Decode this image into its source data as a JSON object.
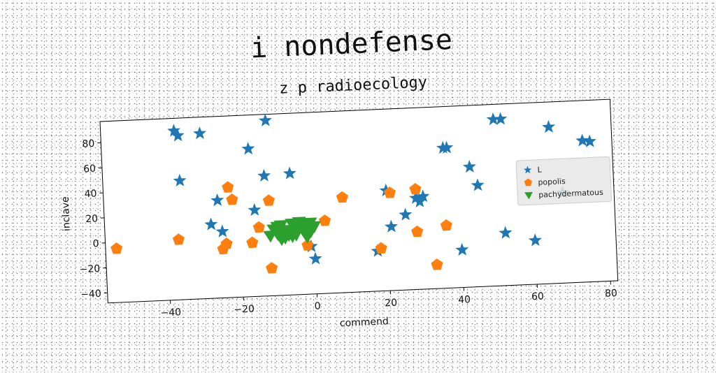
{
  "chart_data": {
    "type": "scatter",
    "title": "i nondefense",
    "subtitle": "z p radioecology",
    "xlabel": "commend",
    "ylabel": "inclave",
    "xlim": [
      -57,
      82
    ],
    "ylim": [
      -48,
      97
    ],
    "xticks": [
      -40,
      -20,
      0,
      20,
      40,
      60,
      80
    ],
    "yticks": [
      -40,
      -20,
      0,
      20,
      40,
      60,
      80
    ],
    "legend_position": "right",
    "series": [
      {
        "name": "L",
        "marker": "star",
        "color": "#1f77b4",
        "points": [
          [
            -37,
            87
          ],
          [
            -36,
            83
          ],
          [
            -30,
            84
          ],
          [
            -12,
            92
          ],
          [
            -17,
            70
          ],
          [
            -36,
            47
          ],
          [
            -13,
            48
          ],
          [
            -6,
            49
          ],
          [
            -16,
            21
          ],
          [
            -28,
            11
          ],
          [
            -25,
            5
          ],
          [
            -26,
            30
          ],
          [
            -1,
            -10
          ],
          [
            0,
            -20
          ],
          [
            20,
            32
          ],
          [
            21,
            3
          ],
          [
            25,
            12
          ],
          [
            28,
            25
          ],
          [
            29,
            22
          ],
          [
            30,
            26
          ],
          [
            36,
            64
          ],
          [
            37,
            64
          ],
          [
            43,
            48
          ],
          [
            45,
            33
          ],
          [
            50,
            85
          ],
          [
            52,
            85
          ],
          [
            65,
            77
          ],
          [
            68,
            24
          ],
          [
            74,
            65
          ],
          [
            76,
            64
          ],
          [
            52,
            -6
          ],
          [
            60,
            -13
          ],
          [
            40,
            -18
          ],
          [
            17,
            -16
          ]
        ]
      },
      {
        "name": "popolis",
        "marker": "pentagon",
        "color": "#ff7f0e",
        "points": [
          [
            -54,
            -5
          ],
          [
            -37,
            0
          ],
          [
            -23,
            40
          ],
          [
            -22,
            30
          ],
          [
            -12,
            28
          ],
          [
            8,
            28
          ],
          [
            21,
            30
          ],
          [
            28,
            32
          ],
          [
            -24,
            -5
          ],
          [
            -25,
            -9
          ],
          [
            -17,
            -5
          ],
          [
            -15,
            7
          ],
          [
            -12,
            -26
          ],
          [
            -2,
            -9
          ],
          [
            3,
            10
          ],
          [
            18,
            -14
          ],
          [
            28,
            -2
          ],
          [
            36,
            2
          ],
          [
            33,
            -29
          ]
        ]
      },
      {
        "name": "pachydermatous",
        "marker": "triangle",
        "color": "#2ca02c",
        "points": [
          [
            -11,
            5
          ],
          [
            -10,
            1
          ],
          [
            -9,
            8
          ],
          [
            -8,
            -2
          ],
          [
            -7,
            4
          ],
          [
            -6,
            9
          ],
          [
            -5,
            0
          ],
          [
            -4,
            6
          ],
          [
            -3,
            3
          ],
          [
            -2,
            8
          ],
          [
            -1,
            2
          ],
          [
            0,
            6
          ],
          [
            -12,
            0
          ],
          [
            -10,
            7
          ],
          [
            -8,
            3
          ],
          [
            -6,
            -1
          ],
          [
            -4,
            10
          ],
          [
            -2,
            -2
          ],
          [
            -1,
            9
          ],
          [
            -9,
            -3
          ],
          [
            -5,
            4
          ],
          [
            -3,
            7
          ],
          [
            -7,
            0
          ]
        ]
      }
    ]
  }
}
